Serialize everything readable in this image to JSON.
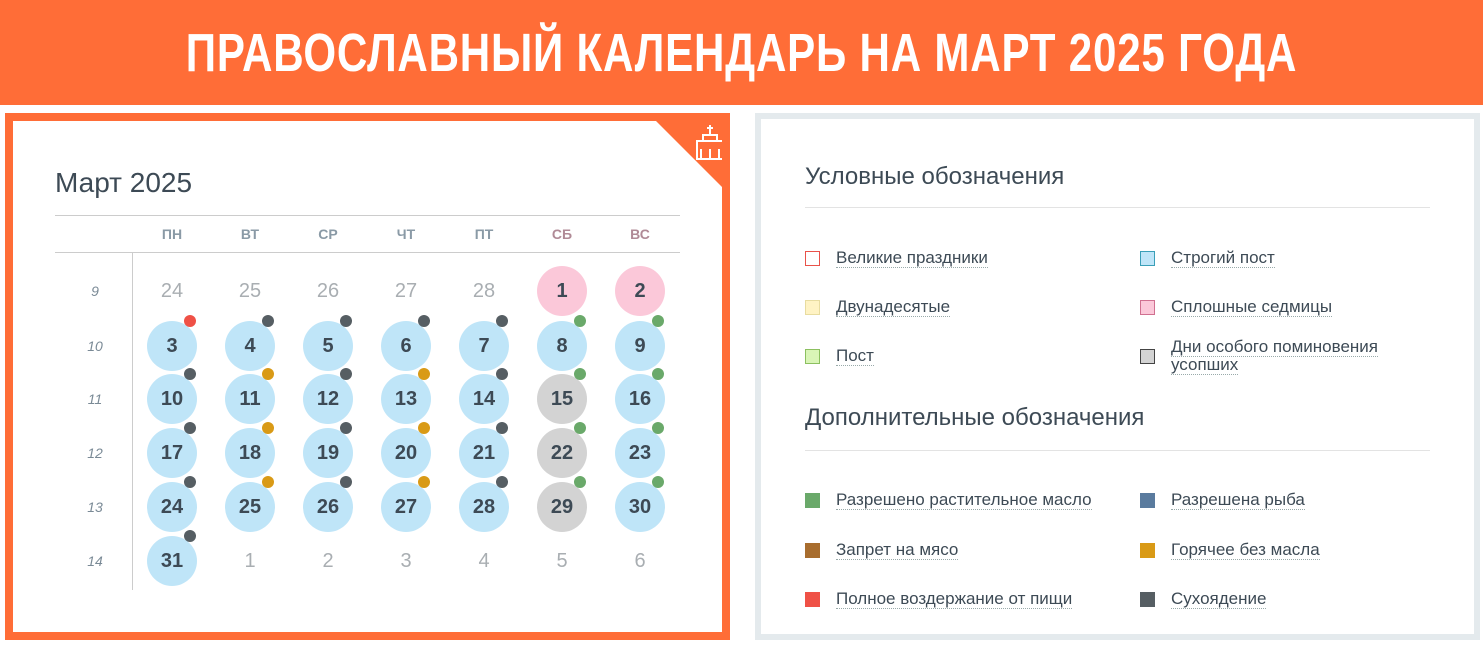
{
  "header": {
    "title": "ПРАВОСЛАВНЫЙ КАЛЕНДАРЬ НА МАРТ 2025 ГОДА"
  },
  "calendar": {
    "title": "Март 2025",
    "weekdays": [
      "ПН",
      "ВТ",
      "СР",
      "ЧТ",
      "ПТ",
      "СБ",
      "ВС"
    ],
    "weeks": [
      {
        "number": "9",
        "days": [
          {
            "day": 24,
            "muted": true
          },
          {
            "day": 25,
            "muted": true
          },
          {
            "day": 26,
            "muted": true
          },
          {
            "day": 27,
            "muted": true
          },
          {
            "day": 28,
            "muted": true
          },
          {
            "day": 1,
            "fill": "#fbc8d9"
          },
          {
            "day": 2,
            "fill": "#fbc8d9"
          }
        ]
      },
      {
        "number": "10",
        "days": [
          {
            "day": 3,
            "fill": "#bfe5f8",
            "dot": "#ef5146"
          },
          {
            "day": 4,
            "fill": "#bfe5f8",
            "dot": "#565e63"
          },
          {
            "day": 5,
            "fill": "#bfe5f8",
            "dot": "#565e63"
          },
          {
            "day": 6,
            "fill": "#bfe5f8",
            "dot": "#565e63"
          },
          {
            "day": 7,
            "fill": "#bfe5f8",
            "dot": "#565e63"
          },
          {
            "day": 8,
            "fill": "#bfe5f8",
            "dot": "#6aa96a"
          },
          {
            "day": 9,
            "fill": "#bfe5f8",
            "dot": "#6aa96a"
          }
        ]
      },
      {
        "number": "11",
        "days": [
          {
            "day": 10,
            "fill": "#bfe5f8",
            "dot": "#565e63"
          },
          {
            "day": 11,
            "fill": "#bfe5f8",
            "dot": "#d99a16"
          },
          {
            "day": 12,
            "fill": "#bfe5f8",
            "dot": "#565e63"
          },
          {
            "day": 13,
            "fill": "#bfe5f8",
            "dot": "#d99a16"
          },
          {
            "day": 14,
            "fill": "#bfe5f8",
            "dot": "#565e63"
          },
          {
            "day": 15,
            "fill": "#d3d3d3",
            "dot": "#6aa96a"
          },
          {
            "day": 16,
            "fill": "#bfe5f8",
            "dot": "#6aa96a"
          }
        ]
      },
      {
        "number": "12",
        "days": [
          {
            "day": 17,
            "fill": "#bfe5f8",
            "dot": "#565e63"
          },
          {
            "day": 18,
            "fill": "#bfe5f8",
            "dot": "#d99a16"
          },
          {
            "day": 19,
            "fill": "#bfe5f8",
            "dot": "#565e63"
          },
          {
            "day": 20,
            "fill": "#bfe5f8",
            "dot": "#d99a16"
          },
          {
            "day": 21,
            "fill": "#bfe5f8",
            "dot": "#565e63"
          },
          {
            "day": 22,
            "fill": "#d3d3d3",
            "dot": "#6aa96a"
          },
          {
            "day": 23,
            "fill": "#bfe5f8",
            "dot": "#6aa96a"
          }
        ]
      },
      {
        "number": "13",
        "days": [
          {
            "day": 24,
            "fill": "#bfe5f8",
            "dot": "#565e63"
          },
          {
            "day": 25,
            "fill": "#bfe5f8",
            "dot": "#d99a16"
          },
          {
            "day": 26,
            "fill": "#bfe5f8",
            "dot": "#565e63"
          },
          {
            "day": 27,
            "fill": "#bfe5f8",
            "dot": "#d99a16"
          },
          {
            "day": 28,
            "fill": "#bfe5f8",
            "dot": "#565e63"
          },
          {
            "day": 29,
            "fill": "#d3d3d3",
            "dot": "#6aa96a"
          },
          {
            "day": 30,
            "fill": "#bfe5f8",
            "dot": "#6aa96a"
          }
        ]
      },
      {
        "number": "14",
        "days": [
          {
            "day": 31,
            "fill": "#bfe5f8",
            "dot": "#565e63"
          },
          {
            "day": 1,
            "muted": true
          },
          {
            "day": 2,
            "muted": true
          },
          {
            "day": 3,
            "muted": true
          },
          {
            "day": 4,
            "muted": true
          },
          {
            "day": 5,
            "muted": true
          },
          {
            "day": 6,
            "muted": true
          }
        ]
      }
    ]
  },
  "legend": {
    "title": "Условные обозначения",
    "items": [
      {
        "label": "Великие праздники",
        "fill": "#ffffff",
        "border": "#e9524a"
      },
      {
        "label": "Строгий пост",
        "fill": "#bfe5f8",
        "border": "#3a9fb8"
      },
      {
        "label": "Двунадесятые",
        "fill": "#fff3c4",
        "border": "#e8dca0"
      },
      {
        "label": "Сплошные седмицы",
        "fill": "#fbc8d9",
        "border": "#d07090"
      },
      {
        "label": "Пост",
        "fill": "#d9f5b7",
        "border": "#8cc060"
      },
      {
        "label": "Дни особого поминовения усопших",
        "fill": "#d3d3d3",
        "border": "#444444"
      }
    ]
  },
  "extra": {
    "title": "Дополнительные обозначения",
    "items": [
      {
        "label": "Разрешено растительное масло",
        "fill": "#6aa96a"
      },
      {
        "label": "Разрешена рыба",
        "fill": "#5a7b9e"
      },
      {
        "label": "Запрет на мясо",
        "fill": "#a86d2e"
      },
      {
        "label": "Горячее без масла",
        "fill": "#d99a16"
      },
      {
        "label": "Полное воздержание от пищи",
        "fill": "#ef5146"
      },
      {
        "label": "Сухоядение",
        "fill": "#565e63"
      }
    ]
  }
}
